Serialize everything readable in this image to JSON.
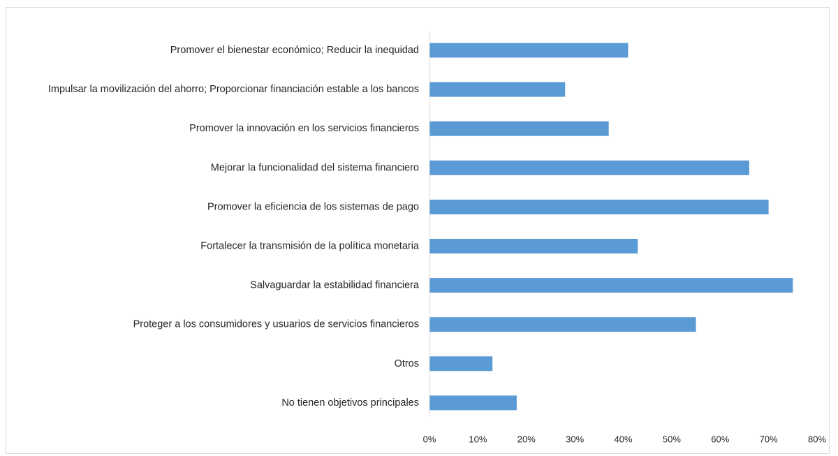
{
  "chart_data": {
    "type": "bar",
    "orientation": "horizontal",
    "categories": [
      "Promover el bienestar económico; Reducir la inequidad",
      "Impulsar la movilización del ahorro; Proporcionar financiación estable a los bancos",
      "Promover la innovación en los servicios financieros",
      "Mejorar la funcionalidad del sistema financiero",
      "Promover la eficiencia de los sistemas de pago",
      "Fortalecer la transmisión de la política monetaria",
      "Salvaguardar la estabilidad financiera",
      "Proteger a los consumidores y usuarios de servicios financieros",
      "Otros",
      "No tienen objetivos principales"
    ],
    "values": [
      41,
      28,
      37,
      66,
      70,
      43,
      75,
      55,
      13,
      18
    ],
    "unit": "%",
    "xlim": [
      0,
      80
    ],
    "x_ticks": [
      "0%",
      "10%",
      "20%",
      "30%",
      "40%",
      "50%",
      "60%",
      "70%",
      "80%"
    ],
    "x_tick_values": [
      0,
      10,
      20,
      30,
      40,
      50,
      60,
      70,
      80
    ],
    "bar_color": "#5b9bd5",
    "axis_color": "#d9d9d9",
    "grid": false,
    "legend": "none"
  }
}
